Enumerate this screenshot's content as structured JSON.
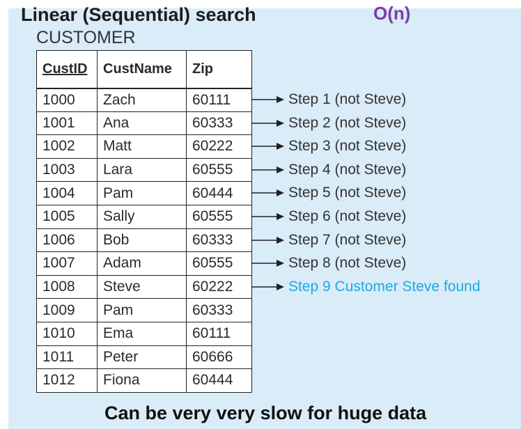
{
  "title": "Linear (Sequential) search",
  "complexity": "O(n)",
  "table_name": "CUSTOMER",
  "columns": [
    "CustID",
    "CustName",
    "Zip"
  ],
  "rows": [
    {
      "id": "1000",
      "name": "Zach",
      "zip": "60111"
    },
    {
      "id": "1001",
      "name": "Ana",
      "zip": "60333"
    },
    {
      "id": "1002",
      "name": "Matt",
      "zip": "60222"
    },
    {
      "id": "1003",
      "name": "Lara",
      "zip": "60555"
    },
    {
      "id": "1004",
      "name": "Pam",
      "zip": "60444"
    },
    {
      "id": "1005",
      "name": "Sally",
      "zip": "60555"
    },
    {
      "id": "1006",
      "name": "Bob",
      "zip": "60333"
    },
    {
      "id": "1007",
      "name": "Adam",
      "zip": "60555"
    },
    {
      "id": "1008",
      "name": "Steve",
      "zip": "60222"
    },
    {
      "id": "1009",
      "name": "Pam",
      "zip": "60333"
    },
    {
      "id": "1010",
      "name": "Ema",
      "zip": "60111"
    },
    {
      "id": "1011",
      "name": "Peter",
      "zip": "60666"
    },
    {
      "id": "1012",
      "name": "Fiona",
      "zip": "60444"
    }
  ],
  "steps": [
    {
      "label": "Step 1 (not Steve)",
      "found": false
    },
    {
      "label": "Step 2 (not Steve)",
      "found": false
    },
    {
      "label": "Step 3 (not Steve)",
      "found": false
    },
    {
      "label": "Step 4 (not Steve)",
      "found": false
    },
    {
      "label": "Step 5 (not Steve)",
      "found": false
    },
    {
      "label": "Step 6 (not Steve)",
      "found": false
    },
    {
      "label": "Step 7 (not Steve)",
      "found": false
    },
    {
      "label": "Step 8 (not Steve)",
      "found": false
    },
    {
      "label": "Step 9 Customer Steve found",
      "found": true
    }
  ],
  "footer": "Can be very very slow for huge data",
  "colors": {
    "panel_background": "#d9ecf8",
    "complexity_text": "#7a3fa6",
    "found_step_text": "#1fa8e2"
  },
  "icons": {
    "step_arrow": "right-arrow-icon"
  }
}
